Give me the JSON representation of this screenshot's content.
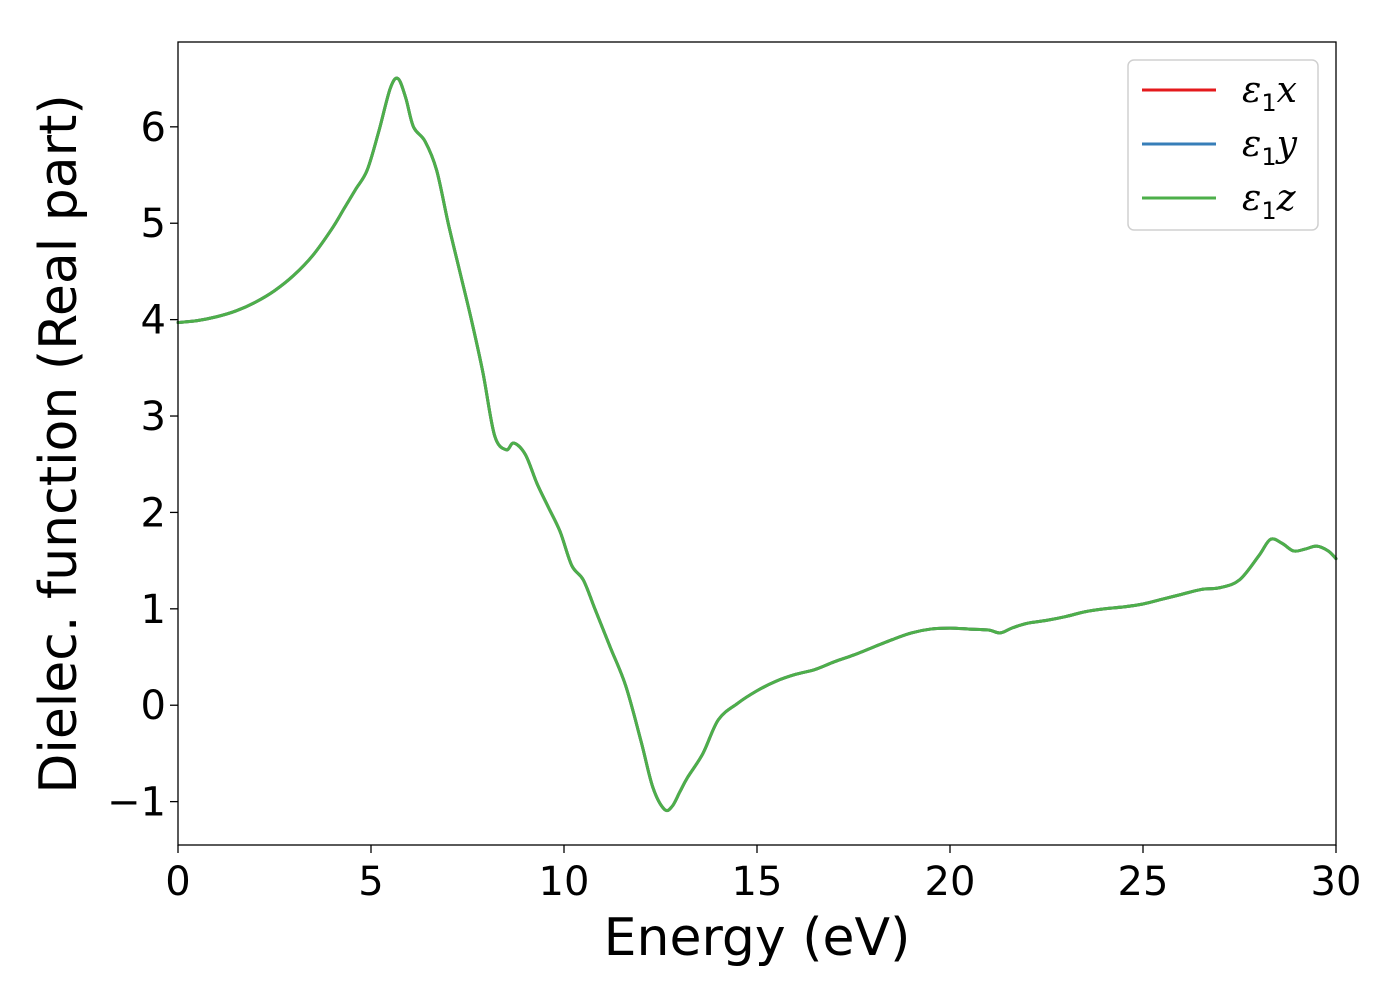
{
  "chart_data": {
    "type": "line",
    "xlabel": "Energy (eV)",
    "ylabel": "Dielec. function (Real part)",
    "xlim": [
      0,
      30
    ],
    "ylim": [
      -1.45,
      6.88
    ],
    "xticks": [
      0,
      5,
      10,
      15,
      20,
      25,
      30
    ],
    "xtick_labels": [
      "0",
      "5",
      "10",
      "15",
      "20",
      "25",
      "30"
    ],
    "yticks": [
      -1,
      0,
      1,
      2,
      3,
      4,
      5,
      6
    ],
    "ytick_labels": [
      "−1",
      "0",
      "1",
      "2",
      "3",
      "4",
      "5",
      "6"
    ],
    "grid": false,
    "legend_position": "top-right",
    "series": [
      {
        "name": "ε1x",
        "color": "#e41a1c",
        "x": [
          0,
          0.5,
          1,
          1.5,
          2,
          2.5,
          3,
          3.5,
          4,
          4.3,
          4.6,
          4.9,
          5.2,
          5.5,
          5.7,
          5.9,
          6.1,
          6.4,
          6.7,
          7.0,
          7.3,
          7.6,
          7.9,
          8.2,
          8.5,
          8.7,
          9.0,
          9.3,
          9.6,
          9.9,
          10.2,
          10.5,
          10.8,
          11.2,
          11.6,
          12.0,
          12.3,
          12.6,
          12.8,
          13.0,
          13.2,
          13.6,
          14.0,
          14.5,
          15.0,
          15.5,
          16.0,
          16.5,
          17.0,
          17.5,
          18.0,
          18.5,
          19.0,
          19.5,
          20.0,
          20.5,
          21.0,
          21.3,
          21.6,
          22.0,
          22.5,
          23.0,
          23.5,
          24.0,
          24.5,
          25.0,
          25.5,
          26.0,
          26.5,
          27.0,
          27.5,
          28.0,
          28.3,
          28.6,
          28.9,
          29.2,
          29.5,
          29.8,
          30.0
        ],
        "values": [
          3.97,
          3.99,
          4.03,
          4.09,
          4.18,
          4.3,
          4.46,
          4.67,
          4.95,
          5.15,
          5.35,
          5.55,
          5.95,
          6.4,
          6.5,
          6.3,
          6.0,
          5.85,
          5.55,
          5.0,
          4.5,
          4.0,
          3.45,
          2.8,
          2.65,
          2.72,
          2.6,
          2.3,
          2.05,
          1.8,
          1.45,
          1.3,
          1.0,
          0.6,
          0.2,
          -0.38,
          -0.85,
          -1.08,
          -1.05,
          -0.9,
          -0.75,
          -0.5,
          -0.15,
          0.02,
          0.15,
          0.25,
          0.32,
          0.37,
          0.45,
          0.52,
          0.6,
          0.68,
          0.75,
          0.79,
          0.8,
          0.79,
          0.78,
          0.75,
          0.8,
          0.85,
          0.88,
          0.92,
          0.97,
          1.0,
          1.02,
          1.05,
          1.1,
          1.15,
          1.2,
          1.22,
          1.3,
          1.55,
          1.72,
          1.68,
          1.6,
          1.62,
          1.65,
          1.6,
          1.52
        ]
      },
      {
        "name": "ε1y",
        "color": "#377eb8",
        "x": [
          0,
          0.5,
          1,
          1.5,
          2,
          2.5,
          3,
          3.5,
          4,
          4.3,
          4.6,
          4.9,
          5.2,
          5.5,
          5.7,
          5.9,
          6.1,
          6.4,
          6.7,
          7.0,
          7.3,
          7.6,
          7.9,
          8.2,
          8.5,
          8.7,
          9.0,
          9.3,
          9.6,
          9.9,
          10.2,
          10.5,
          10.8,
          11.2,
          11.6,
          12.0,
          12.3,
          12.6,
          12.8,
          13.0,
          13.2,
          13.6,
          14.0,
          14.5,
          15.0,
          15.5,
          16.0,
          16.5,
          17.0,
          17.5,
          18.0,
          18.5,
          19.0,
          19.5,
          20.0,
          20.5,
          21.0,
          21.3,
          21.6,
          22.0,
          22.5,
          23.0,
          23.5,
          24.0,
          24.5,
          25.0,
          25.5,
          26.0,
          26.5,
          27.0,
          27.5,
          28.0,
          28.3,
          28.6,
          28.9,
          29.2,
          29.5,
          29.8,
          30.0
        ],
        "values": [
          3.97,
          3.99,
          4.03,
          4.09,
          4.18,
          4.3,
          4.46,
          4.67,
          4.95,
          5.15,
          5.35,
          5.55,
          5.95,
          6.4,
          6.5,
          6.3,
          6.0,
          5.85,
          5.55,
          5.0,
          4.5,
          4.0,
          3.45,
          2.8,
          2.65,
          2.72,
          2.6,
          2.3,
          2.05,
          1.8,
          1.45,
          1.3,
          1.0,
          0.6,
          0.2,
          -0.38,
          -0.85,
          -1.08,
          -1.05,
          -0.9,
          -0.75,
          -0.5,
          -0.15,
          0.02,
          0.15,
          0.25,
          0.32,
          0.37,
          0.45,
          0.52,
          0.6,
          0.68,
          0.75,
          0.79,
          0.8,
          0.79,
          0.78,
          0.75,
          0.8,
          0.85,
          0.88,
          0.92,
          0.97,
          1.0,
          1.02,
          1.05,
          1.1,
          1.15,
          1.2,
          1.22,
          1.3,
          1.55,
          1.72,
          1.68,
          1.6,
          1.62,
          1.65,
          1.6,
          1.52
        ]
      },
      {
        "name": "ε1z",
        "color": "#4daf4a",
        "x": [
          0,
          0.5,
          1,
          1.5,
          2,
          2.5,
          3,
          3.5,
          4,
          4.3,
          4.6,
          4.9,
          5.2,
          5.5,
          5.7,
          5.9,
          6.1,
          6.4,
          6.7,
          7.0,
          7.3,
          7.6,
          7.9,
          8.2,
          8.5,
          8.7,
          9.0,
          9.3,
          9.6,
          9.9,
          10.2,
          10.5,
          10.8,
          11.2,
          11.6,
          12.0,
          12.3,
          12.6,
          12.8,
          13.0,
          13.2,
          13.6,
          14.0,
          14.5,
          15.0,
          15.5,
          16.0,
          16.5,
          17.0,
          17.5,
          18.0,
          18.5,
          19.0,
          19.5,
          20.0,
          20.5,
          21.0,
          21.3,
          21.6,
          22.0,
          22.5,
          23.0,
          23.5,
          24.0,
          24.5,
          25.0,
          25.5,
          26.0,
          26.5,
          27.0,
          27.5,
          28.0,
          28.3,
          28.6,
          28.9,
          29.2,
          29.5,
          29.8,
          30.0
        ],
        "values": [
          3.97,
          3.99,
          4.03,
          4.09,
          4.18,
          4.3,
          4.46,
          4.67,
          4.95,
          5.15,
          5.35,
          5.55,
          5.95,
          6.4,
          6.5,
          6.3,
          6.0,
          5.85,
          5.55,
          5.0,
          4.5,
          4.0,
          3.45,
          2.8,
          2.65,
          2.72,
          2.6,
          2.3,
          2.05,
          1.8,
          1.45,
          1.3,
          1.0,
          0.6,
          0.2,
          -0.38,
          -0.85,
          -1.08,
          -1.05,
          -0.9,
          -0.75,
          -0.5,
          -0.15,
          0.02,
          0.15,
          0.25,
          0.32,
          0.37,
          0.45,
          0.52,
          0.6,
          0.68,
          0.75,
          0.79,
          0.8,
          0.79,
          0.78,
          0.75,
          0.8,
          0.85,
          0.88,
          0.92,
          0.97,
          1.0,
          1.02,
          1.05,
          1.1,
          1.15,
          1.2,
          1.22,
          1.3,
          1.55,
          1.72,
          1.68,
          1.6,
          1.62,
          1.65,
          1.6,
          1.52
        ]
      }
    ]
  }
}
